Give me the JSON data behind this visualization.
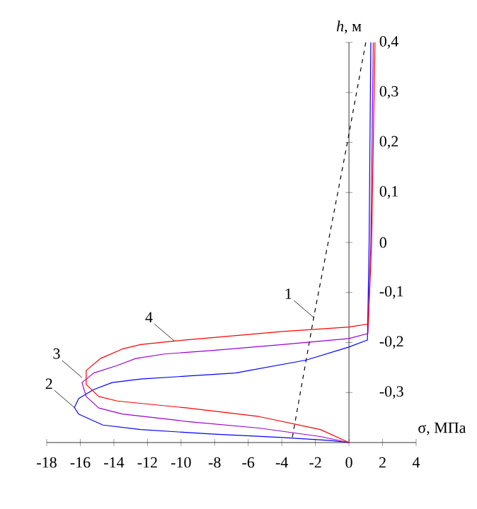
{
  "chart_data": {
    "type": "line",
    "xlabel": "σ, МПа",
    "ylabel": "*h*, м",
    "xlim": [
      -18,
      4
    ],
    "ylim": [
      -0.4,
      0.4
    ],
    "xticks": [
      -18,
      -16,
      -14,
      -12,
      -10,
      -8,
      -6,
      -4,
      -2,
      0,
      2,
      4
    ],
    "yticks": [
      {
        "value": 0.4,
        "label": "0,4"
      },
      {
        "value": 0.3,
        "label": "0,3"
      },
      {
        "value": 0.2,
        "label": "0,2"
      },
      {
        "value": 0.1,
        "label": "0,1"
      },
      {
        "value": 0,
        "label": "0"
      },
      {
        "value": -0.1,
        "label": "-0,1"
      },
      {
        "value": -0.2,
        "label": "-0,2"
      },
      {
        "value": -0.3,
        "label": "-0,3"
      },
      {
        "value": -0.4,
        "label": null
      }
    ],
    "grid": false,
    "marker": "none",
    "series": [
      {
        "color": "#000000",
        "line_style": "dashed",
        "x": [
          1.0,
          -0.15,
          -2.1,
          -3.4
        ],
        "values": [
          0.4,
          0.19,
          -0.15,
          -0.395
        ]
      },
      {
        "color": "#0000ff",
        "line_style": "solid",
        "x": [
          1.3,
          1.2,
          1.1,
          0,
          -2.54,
          -6.76,
          -9.6,
          -12.4,
          -14.1,
          -15.2,
          -16.1,
          -16.35,
          -16.1,
          -14.65,
          -12.4,
          -8.2,
          -3.95,
          -1.1,
          0
        ],
        "values": [
          0.4,
          0.0,
          -0.195,
          -0.209,
          -0.235,
          -0.261,
          -0.267,
          -0.273,
          -0.28,
          -0.294,
          -0.312,
          -0.33,
          -0.343,
          -0.365,
          -0.374,
          -0.383,
          -0.39,
          -0.396,
          -0.4
        ]
      },
      {
        "color": "#9900cc",
        "line_style": "solid",
        "x": [
          1.45,
          1.3,
          1.13,
          0,
          -3.95,
          -8.2,
          -11.0,
          -12.7,
          -13.8,
          -15.2,
          -15.9,
          -15.65,
          -14.9,
          -13.5,
          -9.6,
          -5.36,
          -1.7,
          0
        ],
        "values": [
          0.4,
          0.0,
          -0.182,
          -0.192,
          -0.204,
          -0.216,
          -0.223,
          -0.232,
          -0.246,
          -0.261,
          -0.28,
          -0.308,
          -0.331,
          -0.343,
          -0.358,
          -0.371,
          -0.388,
          -0.4
        ]
      },
      {
        "color": "#ff0000",
        "line_style": "solid",
        "x": [
          1.55,
          1.35,
          1.15,
          0,
          -3.95,
          -10.4,
          -12.4,
          -13.5,
          -14.8,
          -15.65,
          -15.65,
          -14.9,
          -13.8,
          -9.6,
          -5.36,
          -1.7,
          0
        ],
        "values": [
          0.4,
          0.0,
          -0.163,
          -0.169,
          -0.178,
          -0.197,
          -0.204,
          -0.213,
          -0.232,
          -0.256,
          -0.284,
          -0.308,
          -0.317,
          -0.331,
          -0.348,
          -0.374,
          -0.4
        ]
      }
    ],
    "annotations": [
      {
        "text": "1",
        "x": -2.1,
        "y": -0.15
      },
      {
        "text": "2",
        "x": -16.35,
        "y": -0.33
      },
      {
        "text": "3",
        "x": -15.9,
        "y": -0.27
      },
      {
        "text": "4",
        "x": -10.4,
        "y": -0.197
      }
    ]
  }
}
